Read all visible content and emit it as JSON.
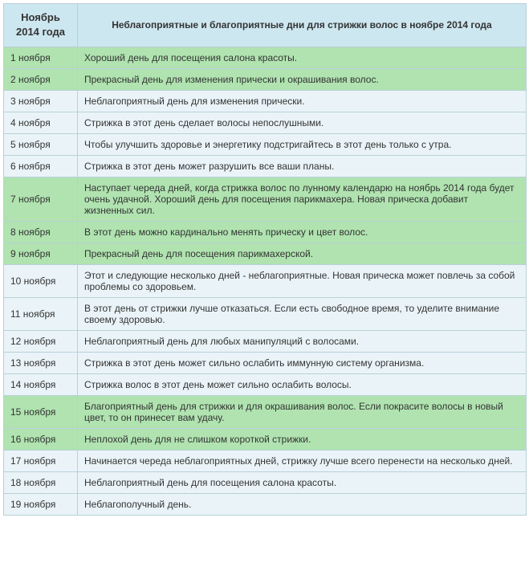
{
  "header": {
    "date_col": "Ноябрь\n2014 года",
    "desc_col": "Неблагоприятные и благоприятные дни для стрижки волос в ноябре 2014 года"
  },
  "colors": {
    "good": "#b0e3b0",
    "bad": "#eaf4f8",
    "header_bg": "#cde7f0",
    "border": "#b8d0d8",
    "text": "#333333"
  },
  "rows": [
    {
      "date": "1 ноября",
      "text": "Хороший день для посещения салона красоты.",
      "kind": "good"
    },
    {
      "date": "2 ноября",
      "text": "Прекрасный день для изменения прически и окрашивания волос.",
      "kind": "good"
    },
    {
      "date": "3 ноября",
      "text": "Неблагоприятный день для изменения прически.",
      "kind": "bad"
    },
    {
      "date": "4 ноября",
      "text": "Стрижка в этот день сделает волосы непослушными.",
      "kind": "bad"
    },
    {
      "date": "5 ноября",
      "text": "Чтобы улучшить здоровье и энергетику подстригайтесь в этот день только с утра.",
      "kind": "bad"
    },
    {
      "date": "6 ноября",
      "text": "Стрижка в этот день может разрушить все ваши планы.",
      "kind": "bad"
    },
    {
      "date": "7 ноября",
      "text": "Наступает череда дней, когда стрижка волос по лунному календарю на ноябрь 2014 года будет очень удачной. Хороший день для посещения парикмахера. Новая прическа добавит жизненных сил.",
      "kind": "good"
    },
    {
      "date": "8 ноября",
      "text": "В этот день можно кардинально менять прическу и цвет волос.",
      "kind": "good"
    },
    {
      "date": "9 ноября",
      "text": "Прекрасный день для посещения парикмахерской.",
      "kind": "good"
    },
    {
      "date": "10 ноября",
      "text": "Этот и следующие несколько дней - неблагоприятные. Новая прическа может повлечь за собой проблемы со здоровьем.",
      "kind": "bad"
    },
    {
      "date": "11 ноября",
      "text": "В этот день от стрижки лучше отказаться. Если есть свободное время, то уделите внимание своему здоровью.",
      "kind": "bad"
    },
    {
      "date": "12 ноября",
      "text": "Неблагоприятный день для любых манипуляций с волосами.",
      "kind": "bad"
    },
    {
      "date": "13 ноября",
      "text": "Стрижка в этот день может сильно ослабить иммунную систему организма.",
      "kind": "bad"
    },
    {
      "date": "14 ноября",
      "text": "Стрижка волос в этот день может сильно ослабить волосы.",
      "kind": "bad"
    },
    {
      "date": "15 ноября",
      "text": "Благоприятный день для стрижки и для окрашивания волос. Если покрасите волосы в новый цвет, то он принесет вам удачу.",
      "kind": "good"
    },
    {
      "date": "16 ноября",
      "text": "Неплохой день для не слишком короткой стрижки.",
      "kind": "good"
    },
    {
      "date": "17 ноября",
      "text": "Начинается череда неблагоприятных дней, стрижку лучше всего перенести на несколько дней.",
      "kind": "bad"
    },
    {
      "date": "18 ноября",
      "text": "Неблагоприятный день для посещения салона красоты.",
      "kind": "bad"
    },
    {
      "date": "19 ноября",
      "text": "Неблагополучный день.",
      "kind": "bad"
    }
  ]
}
